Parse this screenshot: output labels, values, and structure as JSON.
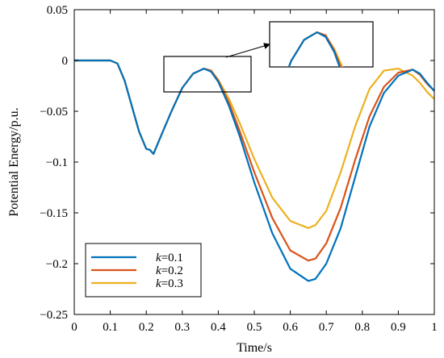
{
  "chart_data": {
    "type": "line",
    "xlabel": "Time/s",
    "ylabel": "Potential Energy/p.u.",
    "xlim": [
      0,
      1
    ],
    "ylim": [
      -0.25,
      0.05
    ],
    "xticks": [
      "0",
      "0.1",
      "0.2",
      "0.3",
      "0.4",
      "0.5",
      "0.6",
      "0.7",
      "0.8",
      "0.9",
      "1"
    ],
    "yticks": [
      "0.05",
      "0",
      "-0.05",
      "-0.1",
      "-0.15",
      "-0.2",
      "-0.25"
    ],
    "grid": false,
    "legend_position": "bottom-left",
    "series": [
      {
        "name": "k=0.1",
        "legend_var": "k",
        "legend_val": "=0.1",
        "color": "#0072BD",
        "x": [
          0,
          0.05,
          0.1,
          0.12,
          0.14,
          0.16,
          0.18,
          0.2,
          0.21,
          0.22,
          0.24,
          0.27,
          0.3,
          0.33,
          0.36,
          0.38,
          0.4,
          0.43,
          0.46,
          0.5,
          0.55,
          0.6,
          0.65,
          0.67,
          0.7,
          0.74,
          0.78,
          0.82,
          0.86,
          0.9,
          0.94,
          0.96,
          0.98,
          1.0
        ],
        "y": [
          0,
          0,
          0,
          -0.003,
          -0.02,
          -0.045,
          -0.07,
          -0.087,
          -0.088,
          -0.092,
          -0.075,
          -0.05,
          -0.027,
          -0.013,
          -0.008,
          -0.011,
          -0.021,
          -0.045,
          -0.075,
          -0.12,
          -0.17,
          -0.205,
          -0.217,
          -0.215,
          -0.2,
          -0.165,
          -0.115,
          -0.065,
          -0.032,
          -0.015,
          -0.009,
          -0.013,
          -0.022,
          -0.03
        ]
      },
      {
        "name": "k=0.2",
        "legend_var": "k",
        "legend_val": "=0.2",
        "color": "#D95319",
        "x": [
          0,
          0.05,
          0.1,
          0.12,
          0.14,
          0.16,
          0.18,
          0.2,
          0.21,
          0.22,
          0.24,
          0.27,
          0.3,
          0.33,
          0.36,
          0.38,
          0.4,
          0.43,
          0.46,
          0.5,
          0.55,
          0.6,
          0.65,
          0.67,
          0.7,
          0.74,
          0.78,
          0.82,
          0.86,
          0.9,
          0.94,
          0.96,
          0.98,
          1.0
        ],
        "y": [
          0,
          0,
          0,
          -0.003,
          -0.02,
          -0.045,
          -0.07,
          -0.087,
          -0.088,
          -0.092,
          -0.075,
          -0.05,
          -0.027,
          -0.013,
          -0.008,
          -0.01,
          -0.02,
          -0.042,
          -0.07,
          -0.11,
          -0.155,
          -0.187,
          -0.197,
          -0.195,
          -0.18,
          -0.145,
          -0.098,
          -0.055,
          -0.026,
          -0.012,
          -0.009,
          -0.014,
          -0.023,
          -0.03
        ]
      },
      {
        "name": "k=0.3",
        "legend_var": "k",
        "legend_val": "=0.3",
        "color": "#EDB120",
        "x": [
          0,
          0.05,
          0.1,
          0.12,
          0.14,
          0.16,
          0.18,
          0.2,
          0.21,
          0.22,
          0.24,
          0.27,
          0.3,
          0.33,
          0.36,
          0.38,
          0.4,
          0.43,
          0.46,
          0.5,
          0.55,
          0.6,
          0.65,
          0.67,
          0.7,
          0.74,
          0.78,
          0.82,
          0.86,
          0.9,
          0.94,
          0.96,
          0.98,
          1.0
        ],
        "y": [
          0,
          0,
          0,
          -0.003,
          -0.02,
          -0.045,
          -0.07,
          -0.087,
          -0.088,
          -0.092,
          -0.075,
          -0.05,
          -0.027,
          -0.013,
          -0.008,
          -0.01,
          -0.019,
          -0.038,
          -0.062,
          -0.097,
          -0.135,
          -0.158,
          -0.165,
          -0.162,
          -0.148,
          -0.11,
          -0.065,
          -0.028,
          -0.01,
          -0.008,
          -0.015,
          -0.022,
          -0.031,
          -0.038
        ]
      }
    ]
  }
}
